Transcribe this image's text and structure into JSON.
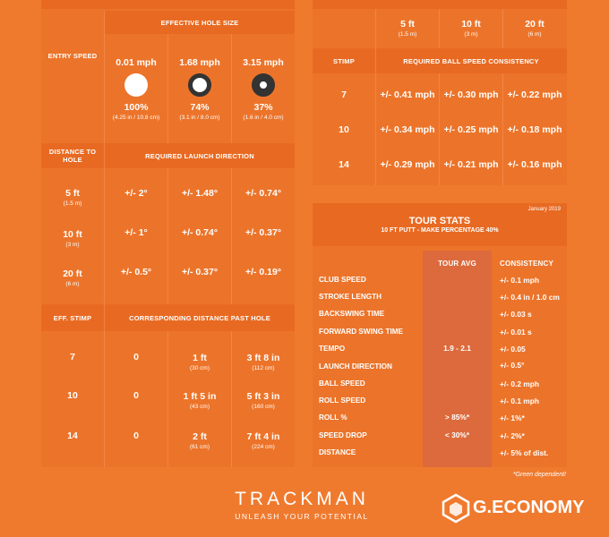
{
  "left": {
    "effective_header": "EFFECTIVE HOLE SIZE",
    "entry_speed_label": "ENTRY SPEED",
    "speeds": [
      {
        "speed": "0.01 mph",
        "pct": "100%",
        "size": "(4.25 in / 10.8 cm)"
      },
      {
        "speed": "1.68 mph",
        "pct": "74%",
        "size": "(3.1 in / 8.0 cm)"
      },
      {
        "speed": "3.15 mph",
        "pct": "37%",
        "size": "(1.6 in / 4.0 cm)"
      }
    ],
    "distance_label": "DISTANCE TO HOLE",
    "launch_header": "REQUIRED LAUNCH DIRECTION",
    "launch_rows": [
      {
        "dist": "5 ft",
        "metric": "(1.5 m)",
        "vals": [
          "+/- 2°",
          "+/- 1.48°",
          "+/- 0.74°"
        ]
      },
      {
        "dist": "10 ft",
        "metric": "(3 m)",
        "vals": [
          "+/- 1°",
          "+/- 0.74°",
          "+/- 0.37°"
        ]
      },
      {
        "dist": "20 ft",
        "metric": "(6 m)",
        "vals": [
          "+/- 0.5°",
          "+/- 0.37°",
          "+/- 0.19°"
        ]
      }
    ],
    "stimp_label": "EFF. STIMP",
    "distance_past_header": "CORRESPONDING DISTANCE PAST HOLE",
    "past_rows": [
      {
        "stimp": "7",
        "vals": [
          {
            "v": "0",
            "m": ""
          },
          {
            "v": "1 ft",
            "m": "(30 cm)"
          },
          {
            "v": "3 ft 8 in",
            "m": "(112 cm)"
          }
        ]
      },
      {
        "stimp": "10",
        "vals": [
          {
            "v": "0",
            "m": ""
          },
          {
            "v": "1 ft 5 in",
            "m": "(43 cm)"
          },
          {
            "v": "5 ft 3 in",
            "m": "(160 cm)"
          }
        ]
      },
      {
        "stimp": "14",
        "vals": [
          {
            "v": "0",
            "m": ""
          },
          {
            "v": "2 ft",
            "m": "(61 cm)"
          },
          {
            "v": "7 ft 4 in",
            "m": "(224 cm)"
          }
        ]
      }
    ]
  },
  "right": {
    "dist_cols": [
      {
        "v": "5 ft",
        "m": "(1.5 m)"
      },
      {
        "v": "10 ft",
        "m": "(3 m)"
      },
      {
        "v": "20 ft",
        "m": "(6 m)"
      }
    ],
    "stimp_label": "STIMP",
    "consistency_header": "REQUIRED BALL SPEED CONSISTENCY",
    "rows": [
      {
        "stimp": "7",
        "vals": [
          "+/- 0.41 mph",
          "+/- 0.30 mph",
          "+/- 0.22 mph"
        ]
      },
      {
        "stimp": "10",
        "vals": [
          "+/- 0.34 mph",
          "+/- 0.25 mph",
          "+/- 0.18 mph"
        ]
      },
      {
        "stimp": "14",
        "vals": [
          "+/- 0.29 mph",
          "+/- 0.21 mph",
          "+/- 0.16 mph"
        ]
      }
    ]
  },
  "tour": {
    "date": "January 2019",
    "title": "TOUR STATS",
    "subtitle": "10 FT PUTT - MAKE PERCENTAGE 40%",
    "avg_header": "TOUR AVG",
    "cons_header": "CONSISTENCY",
    "rows": [
      {
        "name": "CLUB SPEED",
        "avg": "",
        "cons": "+/- 0.1 mph"
      },
      {
        "name": "STROKE LENGTH",
        "avg": "",
        "cons": "+/- 0.4 in / 1.0 cm"
      },
      {
        "name": "BACKSWING TIME",
        "avg": "",
        "cons": "+/- 0.03 s"
      },
      {
        "name": "FORWARD SWING TIME",
        "avg": "",
        "cons": "+/- 0.01 s"
      },
      {
        "name": "TEMPO",
        "avg": "1.9 - 2.1",
        "cons": "+/- 0.05"
      },
      {
        "name": "LAUNCH DIRECTION",
        "avg": "",
        "cons": "+/- 0.5°"
      },
      {
        "name": "BALL SPEED",
        "avg": "",
        "cons": "+/- 0.2 mph"
      },
      {
        "name": "ROLL SPEED",
        "avg": "",
        "cons": "+/- 0.1 mph"
      },
      {
        "name": "ROLL %",
        "avg": "> 85%*",
        "cons": "+/- 1%*"
      },
      {
        "name": "SPEED DROP",
        "avg": "< 30%*",
        "cons": "+/- 2%*"
      },
      {
        "name": "DISTANCE",
        "avg": "",
        "cons": "+/- 5% of dist."
      }
    ],
    "footnote": "*Green dependent!"
  },
  "brand": {
    "name": "TRACKMAN",
    "tagline": "UNLEASH YOUR POTENTIAL",
    "watermark": "G.ECONOMY"
  }
}
